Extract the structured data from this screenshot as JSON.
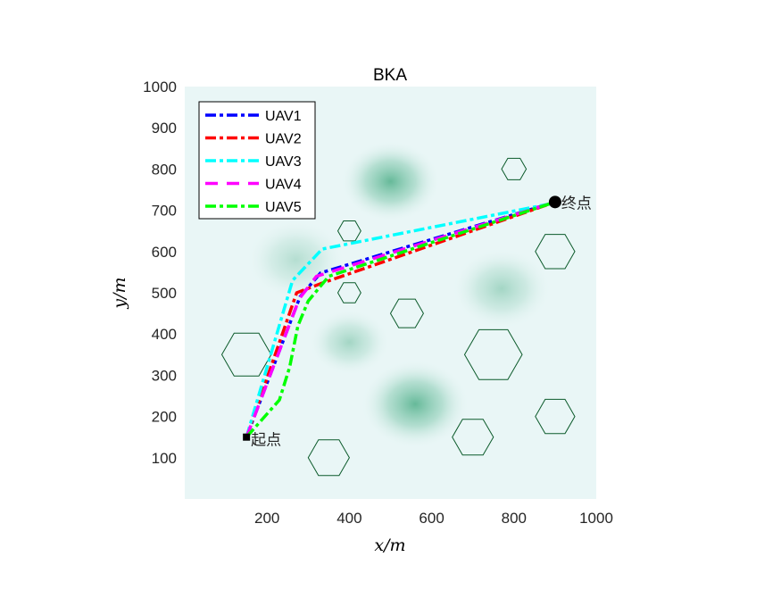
{
  "chart_data": {
    "type": "line",
    "title": "BKA",
    "xlabel": "x/m",
    "ylabel": "y/m",
    "xlim": [
      0,
      1000
    ],
    "ylim": [
      0,
      1000
    ],
    "xticks": [
      200,
      400,
      600,
      800,
      1000
    ],
    "yticks": [
      100,
      200,
      300,
      400,
      500,
      600,
      700,
      800,
      900,
      1000
    ],
    "grid": false,
    "legend_position": "top-left",
    "start": {
      "x": 150,
      "y": 150,
      "label": "起点"
    },
    "end": {
      "x": 900,
      "y": 720,
      "label": "终点"
    },
    "series": [
      {
        "name": "UAV1",
        "color": "#0000ff",
        "points": [
          [
            150,
            150
          ],
          [
            280,
            490
          ],
          [
            330,
            548
          ],
          [
            900,
            720
          ]
        ]
      },
      {
        "name": "UAV2",
        "color": "#ff0000",
        "points": [
          [
            150,
            150
          ],
          [
            272,
            500
          ],
          [
            330,
            522
          ],
          [
            900,
            720
          ]
        ]
      },
      {
        "name": "UAV3",
        "color": "#00ffff",
        "points": [
          [
            150,
            150
          ],
          [
            262,
            530
          ],
          [
            334,
            606
          ],
          [
            900,
            718
          ]
        ]
      },
      {
        "name": "UAV4",
        "color": "#ff00ff",
        "points": [
          [
            150,
            150
          ],
          [
            278,
            485
          ],
          [
            320,
            540
          ],
          [
            900,
            720
          ]
        ]
      },
      {
        "name": "UAV5",
        "color": "#00ff00",
        "points": [
          [
            150,
            150
          ],
          [
            230,
            240
          ],
          [
            255,
            320
          ],
          [
            275,
            420
          ],
          [
            300,
            480
          ],
          [
            350,
            540
          ],
          [
            900,
            720
          ]
        ]
      }
    ],
    "obstacles": [
      {
        "x": 800,
        "y": 800,
        "r": 30
      },
      {
        "x": 400,
        "y": 650,
        "r": 28
      },
      {
        "x": 400,
        "y": 500,
        "r": 28
      },
      {
        "x": 540,
        "y": 450,
        "r": 40
      },
      {
        "x": 900,
        "y": 600,
        "r": 48
      },
      {
        "x": 150,
        "y": 350,
        "r": 60
      },
      {
        "x": 750,
        "y": 350,
        "r": 70
      },
      {
        "x": 900,
        "y": 200,
        "r": 48
      },
      {
        "x": 700,
        "y": 150,
        "r": 50
      },
      {
        "x": 350,
        "y": 100,
        "r": 50
      }
    ],
    "threats": [
      {
        "x": 500,
        "y": 770,
        "s": 110,
        "a": 0.75
      },
      {
        "x": 560,
        "y": 230,
        "s": 120,
        "a": 0.75
      },
      {
        "x": 400,
        "y": 380,
        "s": 90,
        "a": 0.4
      },
      {
        "x": 770,
        "y": 510,
        "s": 110,
        "a": 0.4
      },
      {
        "x": 270,
        "y": 580,
        "s": 110,
        "a": 0.3
      }
    ]
  }
}
